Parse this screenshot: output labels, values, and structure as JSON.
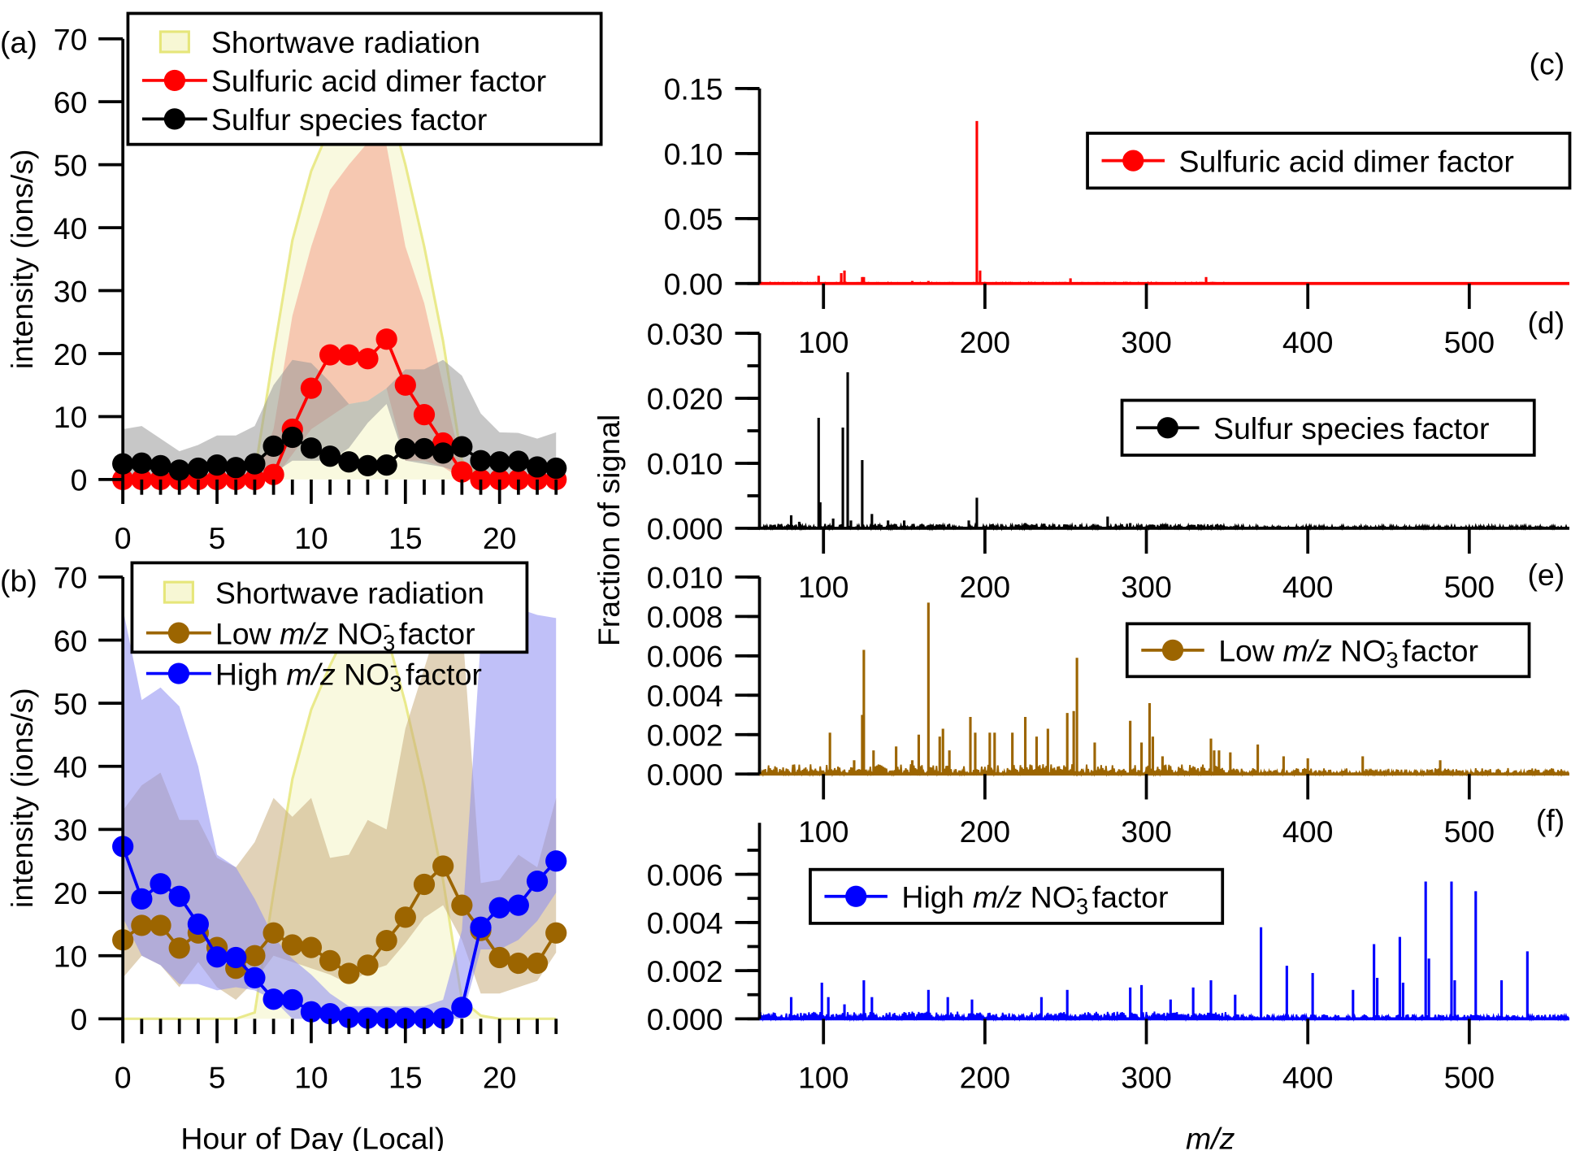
{
  "chart_data": [
    {
      "panel": "(a)",
      "type": "line",
      "xlabel": "",
      "ylabel": "intensity (ions/s)",
      "xlim": [
        0,
        23
      ],
      "ylim": [
        0,
        70
      ],
      "xticks": [
        0,
        5,
        10,
        15,
        20
      ],
      "yticks": [
        0,
        10,
        20,
        30,
        40,
        50,
        60,
        70
      ],
      "legend_position": "top",
      "x": [
        0,
        1,
        2,
        3,
        4,
        5,
        6,
        7,
        8,
        9,
        10,
        11,
        12,
        13,
        14,
        15,
        16,
        17,
        18,
        19,
        20,
        21,
        22,
        23
      ],
      "series": [
        {
          "name": "Shortwave radiation",
          "style": "area",
          "color": "#e6e67a",
          "fill": "#f7f7d4",
          "values": [
            0,
            0,
            0,
            0,
            0,
            0,
            0,
            1,
            20,
            38,
            49,
            56,
            62,
            63.5,
            61,
            50,
            37,
            22,
            3,
            0.5,
            0,
            0,
            0,
            0
          ]
        },
        {
          "name": "Sulfuric acid dimer factor",
          "style": "line-markers",
          "color": "#ff0000",
          "band_color": "#f4a08a",
          "values": [
            0,
            0,
            0,
            0,
            0,
            0,
            0,
            0,
            0.8,
            8,
            14.5,
            19.8,
            19.8,
            19.2,
            22.3,
            15,
            10.3,
            5.8,
            1.2,
            0,
            0,
            0,
            0,
            0
          ],
          "band_upper": [
            0,
            0,
            0,
            0,
            0,
            0,
            0,
            0,
            8,
            26,
            37,
            46,
            50,
            53.5,
            53,
            37,
            28,
            15,
            2,
            0,
            0,
            0,
            0,
            0
          ],
          "band_lower": [
            0,
            0,
            0,
            0,
            0,
            0,
            0,
            0,
            0,
            4,
            8,
            10,
            12,
            12.5,
            14.5,
            3,
            3,
            2,
            0,
            0,
            0,
            0,
            0,
            0
          ]
        },
        {
          "name": "Sulfur species factor",
          "style": "line-markers",
          "color": "#000000",
          "band_color": "#999999",
          "values": [
            2.5,
            2.6,
            2.2,
            1.5,
            1.8,
            2.3,
            1.9,
            2.5,
            5.3,
            6.7,
            5,
            3.7,
            2.8,
            2.2,
            2.3,
            4.9,
            4.9,
            4.2,
            5.2,
            3,
            2.8,
            2.9,
            2,
            1.8
          ],
          "band_upper": [
            8,
            8.5,
            6.5,
            4.5,
            5.5,
            7,
            7,
            8.5,
            15,
            19,
            18.5,
            15.5,
            12,
            12.5,
            14.5,
            17.5,
            17.5,
            19,
            16.5,
            10.5,
            7.5,
            7.4,
            6.5,
            7.5
          ],
          "band_lower": [
            0.5,
            0.5,
            0.5,
            0.5,
            0.5,
            0.5,
            0.5,
            0.5,
            1,
            3,
            3,
            3,
            5,
            9,
            12,
            3,
            2.5,
            2,
            1,
            0.5,
            0.5,
            0.5,
            0.5,
            0.5
          ]
        }
      ]
    },
    {
      "panel": "(b)",
      "type": "line",
      "xlabel": "Hour of Day (Local)",
      "ylabel": "intensity (ions/s)",
      "xlim": [
        0,
        23
      ],
      "ylim": [
        0,
        70
      ],
      "xticks": [
        0,
        5,
        10,
        15,
        20
      ],
      "yticks": [
        0,
        10,
        20,
        30,
        40,
        50,
        60,
        70
      ],
      "legend_position": "top",
      "x": [
        0,
        1,
        2,
        3,
        4,
        5,
        6,
        7,
        8,
        9,
        10,
        11,
        12,
        13,
        14,
        15,
        16,
        17,
        18,
        19,
        20,
        21,
        22,
        23
      ],
      "series": [
        {
          "name": "Shortwave radiation",
          "style": "area",
          "color": "#e6e67a",
          "fill": "#f7f7d4",
          "values": [
            0,
            0,
            0,
            0,
            0,
            0,
            0,
            1,
            20,
            38,
            49,
            56,
            62,
            63.5,
            61,
            50,
            37,
            22,
            3,
            0.5,
            0,
            0,
            0,
            0
          ]
        },
        {
          "name_parts": [
            "Low ",
            "m/z",
            " NO",
            "3",
            "-",
            " factor"
          ],
          "style": "line-markers",
          "color": "#9c6500",
          "band_color": "#c9ad7e",
          "values": [
            12.5,
            14.8,
            14.8,
            11.2,
            13.6,
            11.3,
            8,
            10,
            13.6,
            11.7,
            11.3,
            9.2,
            7.2,
            8.5,
            12.4,
            16.1,
            21.3,
            24.2,
            18,
            14,
            9.7,
            8.8,
            8.8,
            13.6
          ],
          "band_upper": [
            33,
            37,
            39,
            31.5,
            31.5,
            25.5,
            24,
            28,
            35,
            32,
            35,
            25.5,
            26,
            31.5,
            30,
            46,
            55.5,
            65,
            63,
            21.5,
            22,
            26,
            24,
            35
          ],
          "band_lower": [
            6.5,
            10,
            8.5,
            5,
            9,
            5,
            3,
            6,
            10,
            9,
            8,
            7,
            5.5,
            7.5,
            8.5,
            12,
            16,
            18,
            12.5,
            4,
            4,
            5,
            6,
            10.5
          ]
        },
        {
          "name_parts": [
            "High ",
            "m/z",
            " NO",
            "3",
            "-",
            " factor"
          ],
          "style": "line-markers",
          "color": "#0000ff",
          "band_color": "#8c8cf2",
          "values": [
            27.3,
            19,
            21.4,
            19.4,
            15,
            9.8,
            9.7,
            6.5,
            3.1,
            3,
            1.1,
            0.8,
            0.2,
            0.1,
            0.1,
            0.1,
            0.1,
            0.1,
            1.8,
            14.5,
            17.6,
            18,
            21.8,
            25
          ],
          "band_upper": [
            65,
            50.5,
            52.5,
            49.5,
            40,
            26,
            24,
            19,
            13,
            9.5,
            7,
            4,
            2,
            2,
            2,
            2,
            2,
            3,
            14,
            60,
            59,
            65,
            64,
            63.5
          ],
          "band_lower": [
            16,
            10,
            8.5,
            5.5,
            5.5,
            4.5,
            5,
            4.5,
            3,
            0,
            0,
            0,
            0,
            0,
            0,
            0,
            0,
            0,
            0,
            11,
            11,
            12.5,
            15.5,
            20
          ]
        }
      ]
    },
    {
      "panel": "(c)",
      "type": "bar",
      "legend": "Sulfuric acid dimer factor",
      "color": "#ff0000",
      "xlim": [
        60,
        562
      ],
      "ylim": [
        0,
        0.15
      ],
      "yticks": [
        "0.00",
        "0.05",
        "0.10",
        "0.15"
      ],
      "xticks": [
        100,
        200,
        300,
        400,
        500
      ],
      "peaks": [
        [
          97,
          0.006
        ],
        [
          111,
          0.008
        ],
        [
          113,
          0.01
        ],
        [
          124,
          0.005
        ],
        [
          125,
          0.005
        ],
        [
          155,
          0.002
        ],
        [
          160,
          0.001
        ],
        [
          165,
          0.002
        ],
        [
          175,
          0.001
        ],
        [
          195,
          0.125
        ],
        [
          197,
          0.01
        ],
        [
          215,
          0.001
        ],
        [
          253,
          0.004
        ],
        [
          290,
          0.001
        ],
        [
          295,
          0.001
        ],
        [
          337,
          0.005
        ]
      ]
    },
    {
      "panel": "(d)",
      "type": "bar",
      "legend": "Sulfur species factor",
      "color": "#000000",
      "xlim": [
        60,
        562
      ],
      "ylim": [
        0,
        0.03
      ],
      "yticks": [
        "0.000",
        "0.010",
        "0.020",
        "0.030"
      ],
      "xticks": [
        100,
        200,
        300,
        400,
        500
      ],
      "peaks": [
        [
          80,
          0.002
        ],
        [
          85,
          0.001
        ],
        [
          97,
          0.017
        ],
        [
          98,
          0.004
        ],
        [
          106,
          0.0015
        ],
        [
          112,
          0.0155
        ],
        [
          115,
          0.024
        ],
        [
          117,
          0.0012
        ],
        [
          124,
          0.0105
        ],
        [
          130,
          0.0022
        ],
        [
          140,
          0.0012
        ],
        [
          150,
          0.0012
        ],
        [
          190,
          0.0012
        ],
        [
          195,
          0.0047
        ],
        [
          225,
          0.0008
        ],
        [
          276,
          0.0018
        ],
        [
          290,
          0.0008
        ]
      ]
    },
    {
      "panel": "(e)",
      "type": "bar",
      "legend_parts": [
        "Low ",
        "m/z",
        " NO",
        "3",
        "-",
        " factor"
      ],
      "color": "#9c6500",
      "xlim": [
        60,
        562
      ],
      "ylim": [
        0,
        0.01
      ],
      "yticks": [
        "0.000",
        "0.002",
        "0.004",
        "0.006",
        "0.008",
        "0.010"
      ],
      "xticks": [
        100,
        200,
        300,
        400,
        500
      ],
      "peaks": [
        [
          104,
          0.0021
        ],
        [
          119,
          0.0007
        ],
        [
          124,
          0.003
        ],
        [
          125,
          0.0063
        ],
        [
          131,
          0.0012
        ],
        [
          145,
          0.0014
        ],
        [
          155,
          0.0007
        ],
        [
          159,
          0.002
        ],
        [
          165,
          0.0087
        ],
        [
          172,
          0.0019
        ],
        [
          174,
          0.0023
        ],
        [
          178,
          0.0012
        ],
        [
          191,
          0.0029
        ],
        [
          194,
          0.0021
        ],
        [
          203,
          0.0021
        ],
        [
          206,
          0.0021
        ],
        [
          217,
          0.0021
        ],
        [
          225,
          0.0029
        ],
        [
          232,
          0.0019
        ],
        [
          239,
          0.0023
        ],
        [
          251,
          0.0031
        ],
        [
          255,
          0.0032
        ],
        [
          257,
          0.0059
        ],
        [
          268,
          0.0016
        ],
        [
          290,
          0.0027
        ],
        [
          297,
          0.0016
        ],
        [
          302,
          0.0036
        ],
        [
          304,
          0.0019
        ],
        [
          310,
          0.0009
        ],
        [
          340,
          0.0018
        ],
        [
          342,
          0.0012
        ],
        [
          345,
          0.0012
        ],
        [
          352,
          0.0011
        ],
        [
          369,
          0.0015
        ],
        [
          385,
          0.0009
        ],
        [
          400,
          0.0008
        ],
        [
          434,
          0.0009
        ],
        [
          482,
          0.0007
        ]
      ]
    },
    {
      "panel": "(f)",
      "type": "bar",
      "legend_parts": [
        "High ",
        "m/z",
        " NO",
        "3",
        "-",
        " factor"
      ],
      "color": "#0000ff",
      "xlim": [
        60,
        562
      ],
      "ylim": [
        0,
        0.007
      ],
      "yticks": [
        "0.000",
        "0.002",
        "0.004",
        "0.006"
      ],
      "xticks": [
        100,
        200,
        300,
        400,
        500
      ],
      "xlabel": "m/z",
      "shared_ylabel": "Fraction of signal",
      "peaks": [
        [
          80,
          0.0009
        ],
        [
          99,
          0.0015
        ],
        [
          103,
          0.0009
        ],
        [
          113,
          0.0006
        ],
        [
          125,
          0.0016
        ],
        [
          130,
          0.0009
        ],
        [
          165,
          0.0012
        ],
        [
          177,
          0.0009
        ],
        [
          192,
          0.0008
        ],
        [
          235,
          0.0009
        ],
        [
          251,
          0.0012
        ],
        [
          290,
          0.0013
        ],
        [
          297,
          0.0014
        ],
        [
          315,
          0.0008
        ],
        [
          329,
          0.0013
        ],
        [
          340,
          0.0016
        ],
        [
          355,
          0.001
        ],
        [
          371,
          0.0038
        ],
        [
          387,
          0.0022
        ],
        [
          403,
          0.0019
        ],
        [
          428,
          0.0012
        ],
        [
          441,
          0.0031
        ],
        [
          443,
          0.0017
        ],
        [
          457,
          0.0034
        ],
        [
          459,
          0.0015
        ],
        [
          473,
          0.0057
        ],
        [
          475,
          0.0025
        ],
        [
          489,
          0.0057
        ],
        [
          491,
          0.0016
        ],
        [
          504,
          0.0053
        ],
        [
          520,
          0.0016
        ],
        [
          536,
          0.0028
        ]
      ]
    }
  ]
}
